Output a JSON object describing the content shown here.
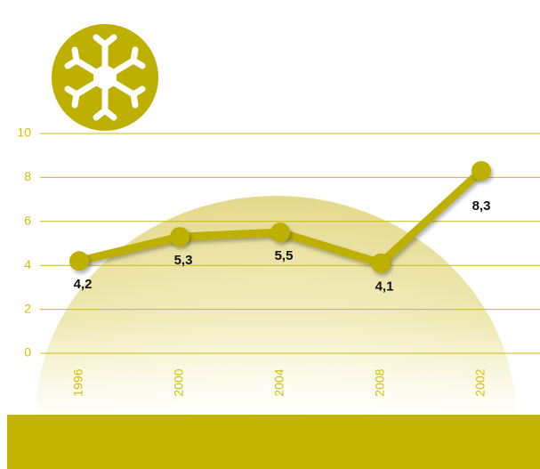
{
  "chart_data": {
    "type": "line",
    "categories": [
      "1996",
      "2000",
      "2004",
      "2008",
      "2002"
    ],
    "series": [
      {
        "color": "#bdb000",
        "values": [
          4.2,
          5.3,
          5.5,
          4.1,
          8.3
        ],
        "value_labels": [
          "4,2",
          "5,3",
          "5,5",
          "4,1",
          "8,3"
        ]
      }
    ],
    "ylim": [
      0,
      10
    ],
    "yticks": [
      0,
      2,
      4,
      6,
      8,
      10
    ],
    "grid": true
  }
}
